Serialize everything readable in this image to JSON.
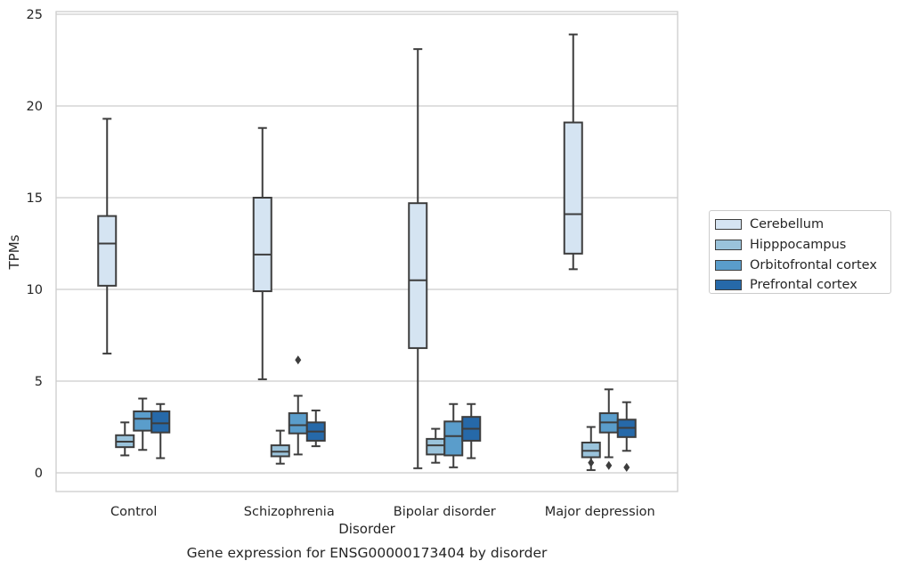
{
  "chart_data": {
    "type": "box",
    "title": "Gene expression for ENSG00000173404 by disorder",
    "xlabel": "Disorder",
    "ylabel": "TPMs",
    "ylim": [
      -1,
      25.2
    ],
    "yticks": [
      0,
      5,
      10,
      15,
      20,
      25
    ],
    "categories": [
      "Control",
      "Schizophrenia",
      "Bipolar disorder",
      "Major depression"
    ],
    "grid": "horizontal",
    "legend_position": "right",
    "series": [
      {
        "name": "Cerebellum",
        "color": "#d5e4f2",
        "boxes": [
          {
            "whisker_low": 6.5,
            "q1": 10.2,
            "median": 12.5,
            "q3": 14.0,
            "whisker_high": 19.3,
            "outliers": []
          },
          {
            "whisker_low": 5.1,
            "q1": 9.9,
            "median": 11.9,
            "q3": 15.0,
            "whisker_high": 18.8,
            "outliers": []
          },
          {
            "whisker_low": 0.25,
            "q1": 6.8,
            "median": 10.5,
            "q3": 14.7,
            "whisker_high": 23.1,
            "outliers": []
          },
          {
            "whisker_low": 11.1,
            "q1": 11.95,
            "median": 14.1,
            "q3": 19.1,
            "whisker_high": 23.9,
            "outliers": []
          }
        ]
      },
      {
        "name": "Hipppocampus",
        "color": "#9ac3db",
        "boxes": [
          {
            "whisker_low": 0.95,
            "q1": 1.4,
            "median": 1.7,
            "q3": 2.05,
            "whisker_high": 2.75,
            "outliers": []
          },
          {
            "whisker_low": 0.5,
            "q1": 0.9,
            "median": 1.15,
            "q3": 1.5,
            "whisker_high": 2.3,
            "outliers": []
          },
          {
            "whisker_low": 0.55,
            "q1": 1.0,
            "median": 1.5,
            "q3": 1.85,
            "whisker_high": 2.4,
            "outliers": []
          },
          {
            "whisker_low": 0.15,
            "q1": 0.85,
            "median": 1.2,
            "q3": 1.65,
            "whisker_high": 2.5,
            "outliers": [
              0.55
            ]
          }
        ]
      },
      {
        "name": "Orbitofrontal cortex",
        "color": "#5a9dcb",
        "boxes": [
          {
            "whisker_low": 1.25,
            "q1": 2.3,
            "median": 2.95,
            "q3": 3.35,
            "whisker_high": 4.05,
            "outliers": []
          },
          {
            "whisker_low": 1.0,
            "q1": 2.15,
            "median": 2.6,
            "q3": 3.25,
            "whisker_high": 4.2,
            "outliers": [
              6.15
            ]
          },
          {
            "whisker_low": 0.3,
            "q1": 0.95,
            "median": 2.0,
            "q3": 2.8,
            "whisker_high": 3.75,
            "outliers": []
          },
          {
            "whisker_low": 0.85,
            "q1": 2.2,
            "median": 2.75,
            "q3": 3.25,
            "whisker_high": 4.55,
            "outliers": [
              0.4
            ]
          }
        ]
      },
      {
        "name": "Prefrontal cortex",
        "color": "#2669a9",
        "boxes": [
          {
            "whisker_low": 0.8,
            "q1": 2.2,
            "median": 2.7,
            "q3": 3.35,
            "whisker_high": 3.75,
            "outliers": []
          },
          {
            "whisker_low": 1.45,
            "q1": 1.75,
            "median": 2.25,
            "q3": 2.75,
            "whisker_high": 3.4,
            "outliers": []
          },
          {
            "whisker_low": 0.8,
            "q1": 1.75,
            "median": 2.4,
            "q3": 3.05,
            "whisker_high": 3.75,
            "outliers": []
          },
          {
            "whisker_low": 1.2,
            "q1": 1.95,
            "median": 2.45,
            "q3": 2.9,
            "whisker_high": 3.85,
            "outliers": [
              0.3
            ]
          }
        ]
      }
    ]
  }
}
